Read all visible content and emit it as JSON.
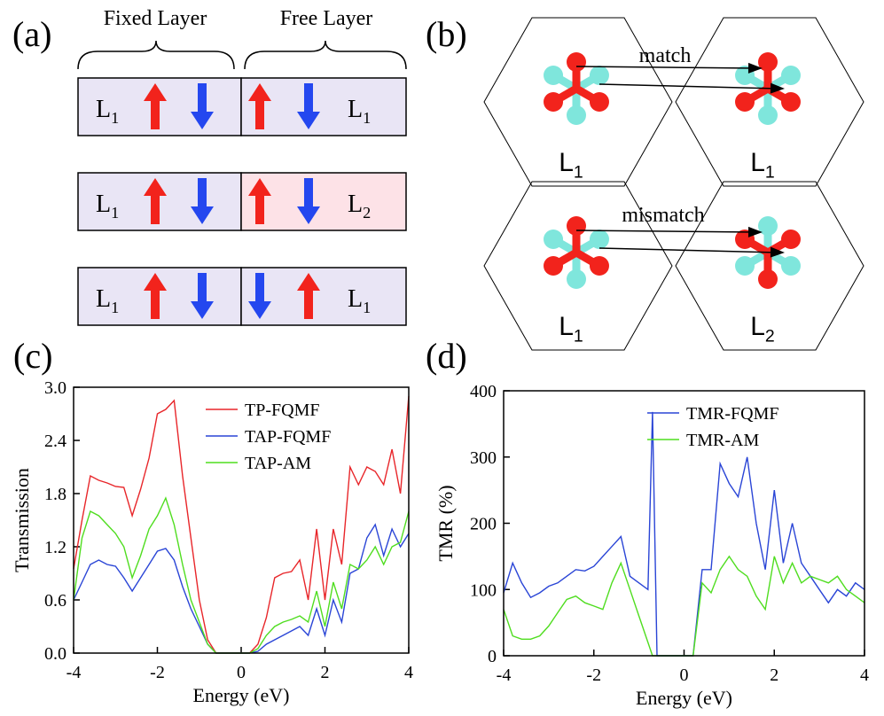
{
  "panel_a": {
    "label": "(a)",
    "headers": [
      "Fixed Layer",
      "Free Layer"
    ],
    "rows": [
      {
        "left": {
          "base": "L",
          "sub": "1"
        },
        "right": {
          "base": "L",
          "sub": "1"
        }
      },
      {
        "left": {
          "base": "L",
          "sub": "1"
        },
        "right": {
          "base": "L",
          "sub": "2"
        }
      },
      {
        "left": {
          "base": "L",
          "sub": "1"
        },
        "right": {
          "base": "L",
          "sub": "1"
        }
      }
    ]
  },
  "panel_b": {
    "label": "(b)",
    "rows": [
      {
        "arrow_label": "match",
        "left": {
          "base": "L",
          "sub": "1"
        },
        "right": {
          "base": "L",
          "sub": "1"
        }
      },
      {
        "arrow_label": "mismatch",
        "left": {
          "base": "L",
          "sub": "1"
        },
        "right": {
          "base": "L",
          "sub": "2"
        }
      }
    ]
  },
  "chart_data": [
    {
      "type": "line",
      "label": "(c)",
      "xlabel": "Energy (eV)",
      "ylabel": "Transmission",
      "legend": "upper center",
      "xlim": [
        -4,
        4
      ],
      "xticks": [
        -4,
        -2,
        0,
        2,
        4
      ],
      "ylim": [
        0,
        3.0
      ],
      "yticks": [
        {
          "value": 0,
          "label": "0.0"
        },
        0.6,
        1.2,
        1.8,
        2.4,
        {
          "value": 3.0,
          "label": "3.0"
        }
      ],
      "x": [
        -4,
        -3.8,
        -3.6,
        -3.4,
        -3.2,
        -3.0,
        -2.8,
        -2.6,
        -2.4,
        -2.2,
        -2.0,
        -1.8,
        -1.6,
        -1.4,
        -1.2,
        -1.0,
        -0.8,
        -0.6,
        -0.4,
        -0.2,
        0,
        0.2,
        0.4,
        0.6,
        0.8,
        1.0,
        1.2,
        1.4,
        1.6,
        1.8,
        2.0,
        2.2,
        2.4,
        2.6,
        2.8,
        3.0,
        3.2,
        3.4,
        3.6,
        3.8,
        4.0
      ],
      "series": [
        {
          "name": "TP-FQMF",
          "color": "#e8262a",
          "values": [
            0.95,
            1.5,
            2.0,
            1.95,
            1.92,
            1.88,
            1.87,
            1.55,
            1.85,
            2.2,
            2.7,
            2.75,
            2.85,
            2.0,
            1.3,
            0.6,
            0.15,
            0,
            0,
            0,
            0,
            0,
            0.1,
            0.4,
            0.85,
            0.9,
            0.92,
            1.05,
            0.6,
            1.4,
            0.6,
            1.4,
            1.0,
            2.1,
            1.9,
            2.1,
            2.05,
            1.9,
            2.3,
            1.8,
            2.9
          ]
        },
        {
          "name": "TAP-FQMF",
          "color": "#2a45d6",
          "values": [
            0.6,
            0.8,
            1.0,
            1.05,
            1.0,
            0.98,
            0.85,
            0.7,
            0.85,
            1.0,
            1.15,
            1.18,
            1.05,
            0.75,
            0.5,
            0.3,
            0.1,
            0,
            0,
            0,
            0,
            0,
            0.02,
            0.1,
            0.15,
            0.2,
            0.25,
            0.3,
            0.2,
            0.5,
            0.2,
            0.6,
            0.35,
            0.9,
            0.95,
            1.3,
            1.45,
            1.1,
            1.4,
            1.2,
            1.35
          ]
        },
        {
          "name": "TAP-AM",
          "color": "#4fdd1f",
          "values": [
            0.6,
            1.3,
            1.6,
            1.55,
            1.45,
            1.35,
            1.2,
            0.85,
            1.1,
            1.4,
            1.55,
            1.75,
            1.45,
            1.0,
            0.6,
            0.35,
            0.1,
            0,
            0,
            0,
            0,
            0,
            0.05,
            0.2,
            0.3,
            0.35,
            0.38,
            0.42,
            0.35,
            0.7,
            0.3,
            0.8,
            0.5,
            1.0,
            0.95,
            1.05,
            1.2,
            1.0,
            1.2,
            1.25,
            1.6
          ]
        }
      ]
    },
    {
      "type": "line",
      "label": "(d)",
      "xlabel": "Energy (eV)",
      "ylabel": "TMR (%)",
      "legend": "upper right",
      "xlim": [
        -4,
        4
      ],
      "xticks": [
        -4,
        -2,
        0,
        2,
        4
      ],
      "ylim": [
        0,
        400
      ],
      "yticks": [
        0,
        100,
        200,
        300,
        400
      ],
      "x": [
        -4,
        -3.8,
        -3.6,
        -3.4,
        -3.2,
        -3.0,
        -2.8,
        -2.6,
        -2.4,
        -2.2,
        -2.0,
        -1.8,
        -1.6,
        -1.4,
        -1.2,
        -1.0,
        -0.8,
        -0.7,
        -0.6,
        -0.4,
        -0.2,
        0,
        0.2,
        0.4,
        0.6,
        0.8,
        1.0,
        1.2,
        1.4,
        1.6,
        1.8,
        2.0,
        2.2,
        2.4,
        2.6,
        2.8,
        3.0,
        3.2,
        3.4,
        3.6,
        3.8,
        4.0
      ],
      "series": [
        {
          "name": "TMR-FQMF",
          "color": "#2a45d6",
          "values": [
            95,
            140,
            110,
            88,
            95,
            105,
            110,
            120,
            130,
            128,
            135,
            150,
            165,
            180,
            120,
            110,
            100,
            368,
            0,
            0,
            0,
            0,
            0,
            130,
            130,
            290,
            260,
            240,
            300,
            200,
            130,
            250,
            140,
            200,
            140,
            120,
            100,
            80,
            100,
            90,
            110,
            100
          ]
        },
        {
          "name": "TMR-AM",
          "color": "#4fdd1f",
          "values": [
            70,
            30,
            25,
            25,
            30,
            45,
            65,
            85,
            90,
            80,
            75,
            70,
            110,
            140,
            100,
            60,
            20,
            0,
            0,
            0,
            0,
            0,
            0,
            110,
            95,
            130,
            150,
            130,
            120,
            90,
            70,
            150,
            110,
            140,
            110,
            120,
            115,
            110,
            120,
            100,
            90,
            80
          ]
        }
      ]
    }
  ]
}
